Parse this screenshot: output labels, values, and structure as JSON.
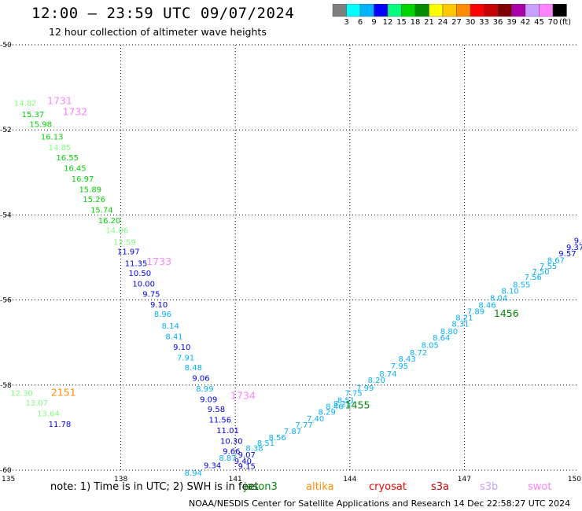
{
  "header": {
    "title": "12:00 — 23:59 UTC 09/07/2024",
    "subtitle": "12 hour collection of altimeter wave heights"
  },
  "colorbar": {
    "labels": [
      "3",
      "6",
      "9",
      "12",
      "15",
      "18",
      "21",
      "24",
      "27",
      "30",
      "33",
      "36",
      "39",
      "42",
      "45",
      "70"
    ],
    "unit": "(ft)",
    "colors": [
      "#7f7f7f",
      "#00ffff",
      "#00b2ff",
      "#0000ff",
      "#00ff7f",
      "#00d400",
      "#008c00",
      "#ffff00",
      "#ffc800",
      "#ff8c00",
      "#ff0000",
      "#c80000",
      "#7f0000",
      "#aa00aa",
      "#c8a0ff",
      "#ff82ff",
      "#000000"
    ]
  },
  "footer": {
    "note_prefix": "note:  1) Time is in UTC;  2) SWH is in feet",
    "satellites": [
      {
        "name": "jason3",
        "color": "#008c00"
      },
      {
        "name": "altika",
        "color": "#ff8c00"
      },
      {
        "name": "cryosat",
        "color": "#ff0000"
      },
      {
        "name": "s3a",
        "color": "#c80000"
      },
      {
        "name": "s3b",
        "color": "#c8a0ff"
      },
      {
        "name": "swot",
        "color": "#ff82ff"
      }
    ],
    "credit": "NOAA/NESDIS Center for Satellite Applications and Research    14 Dec 22:58:27 UTC 2024"
  },
  "chart_data": {
    "type": "scatter",
    "xlim": [
      135,
      150
    ],
    "ylim": [
      -60,
      -50
    ],
    "x_ticks": [
      "135",
      "138",
      "141",
      "144",
      "147",
      "150"
    ],
    "y_ticks": [
      "-50",
      "-52",
      "-54",
      "-56",
      "-58",
      "-60"
    ],
    "grid": true,
    "track_a": [
      [
        "14.82",
        135.5,
        -51.43,
        "#7fff7f"
      ],
      [
        "15.37",
        135.7,
        -51.7,
        "#00d400"
      ],
      [
        "15.98",
        135.9,
        -51.93,
        "#00d400"
      ],
      [
        "16.13",
        136.2,
        -52.23,
        "#00d400"
      ],
      [
        "14.85",
        136.4,
        -52.48,
        "#7fff7f"
      ],
      [
        "16.55",
        136.6,
        -52.72,
        "#00d400"
      ],
      [
        "16.45",
        136.8,
        -52.97,
        "#00d400"
      ],
      [
        "16.97",
        137.0,
        -53.22,
        "#00d400"
      ],
      [
        "15.89",
        137.2,
        -53.47,
        "#00d400"
      ],
      [
        "15.26",
        137.3,
        -53.7,
        "#00d400"
      ],
      [
        "15.74",
        137.5,
        -53.95,
        "#00d400"
      ],
      [
        "16.20",
        137.7,
        -54.2,
        "#00d400"
      ],
      [
        "14.06",
        137.9,
        -54.43,
        "#7fff7f"
      ],
      [
        "12.59",
        138.1,
        -54.7,
        "#7fff7f"
      ],
      [
        "11.97",
        138.2,
        -54.93,
        "#0000ff"
      ],
      [
        "11.35",
        138.4,
        -55.2,
        "#0000ff"
      ],
      [
        "10.50",
        138.5,
        -55.43,
        "#0000ff"
      ],
      [
        "10.00",
        138.6,
        -55.68,
        "#0000ff"
      ],
      [
        "9.75",
        138.8,
        -55.92,
        "#0000ff"
      ],
      [
        "9.10",
        139.0,
        -56.17,
        "#0000ff"
      ],
      [
        "8.96",
        139.1,
        -56.4,
        "#00b2ff"
      ],
      [
        "8.14",
        139.3,
        -56.67,
        "#00b2ff"
      ],
      [
        "8.41",
        139.4,
        -56.92,
        "#00b2ff"
      ],
      [
        "9.10",
        139.6,
        -57.17,
        "#0000ff"
      ],
      [
        "7.91",
        139.7,
        -57.42,
        "#00b2ff"
      ],
      [
        "8.48",
        139.9,
        -57.65,
        "#00b2ff"
      ],
      [
        "9.06",
        140.1,
        -57.9,
        "#0000ff"
      ],
      [
        "8.99",
        140.2,
        -58.15,
        "#00b2ff"
      ],
      [
        "9.09",
        140.3,
        -58.4,
        "#0000ff"
      ],
      [
        "9.58",
        140.5,
        -58.63,
        "#0000ff"
      ],
      [
        "11.56",
        140.6,
        -58.88,
        "#0000ff"
      ],
      [
        "11.01",
        140.8,
        -59.13,
        "#0000ff"
      ],
      [
        "10.30",
        140.9,
        -59.38,
        "#0000ff"
      ],
      [
        "9.66",
        140.9,
        -59.62,
        "#0000ff"
      ],
      [
        "9.40",
        141.2,
        -59.85,
        "#0000ff"
      ],
      [
        "8.94",
        139.9,
        -60.13,
        "#00b2ff"
      ],
      [
        "9.34",
        140.4,
        -59.95,
        "#0000ff"
      ],
      [
        "8.87",
        140.8,
        -59.78,
        "#00b2ff"
      ],
      [
        "9.07",
        141.3,
        -59.7,
        "#0000ff"
      ],
      [
        "9.15",
        141.3,
        -59.97,
        "#0000ff"
      ],
      [
        "8.38",
        141.5,
        -59.55,
        "#00b2ff"
      ]
    ],
    "track_b": [
      [
        "8.51",
        141.8,
        -59.43,
        "#00b2ff"
      ],
      [
        "8.56",
        142.1,
        -59.3,
        "#00b2ff"
      ],
      [
        "7.87",
        142.5,
        -59.15,
        "#00b2ff"
      ],
      [
        "7.77",
        142.8,
        -59.0,
        "#00b2ff"
      ],
      [
        "7.40",
        143.1,
        -58.85,
        "#00b2ff"
      ],
      [
        "8.29",
        143.4,
        -58.7,
        "#00b2ff"
      ],
      [
        "8.46",
        143.6,
        -58.57,
        "#00b2ff"
      ],
      [
        "8.25",
        143.8,
        -58.5,
        "#00b2ff"
      ],
      [
        "8.51",
        143.9,
        -58.42,
        "#00b2ff"
      ],
      [
        "7.75",
        144.1,
        -58.25,
        "#00b2ff"
      ],
      [
        "7.99",
        144.4,
        -58.13,
        "#00b2ff"
      ],
      [
        "8.20",
        144.7,
        -57.95,
        "#00b2ff"
      ],
      [
        "8.74",
        145.0,
        -57.8,
        "#00b2ff"
      ],
      [
        "7.95",
        145.3,
        -57.62,
        "#00b2ff"
      ],
      [
        "8.43",
        145.5,
        -57.45,
        "#00b2ff"
      ],
      [
        "8.72",
        145.8,
        -57.3,
        "#00b2ff"
      ],
      [
        "8.05",
        146.1,
        -57.13,
        "#00b2ff"
      ],
      [
        "8.64",
        146.4,
        -56.95,
        "#00b2ff"
      ],
      [
        "8.80",
        146.6,
        -56.8,
        "#00b2ff"
      ],
      [
        "8.31",
        146.9,
        -56.63,
        "#00b2ff"
      ],
      [
        "8.21",
        147.0,
        -56.48,
        "#00b2ff"
      ],
      [
        "7.89",
        147.3,
        -56.33,
        "#00b2ff"
      ],
      [
        "8.46",
        147.6,
        -56.18,
        "#00b2ff"
      ],
      [
        "8.04",
        147.9,
        -56.02,
        "#00b2ff"
      ],
      [
        "8.10",
        148.2,
        -55.85,
        "#00b2ff"
      ],
      [
        "8.55",
        148.5,
        -55.7,
        "#00b2ff"
      ],
      [
        "7.56",
        148.8,
        -55.53,
        "#00b2ff"
      ],
      [
        "7.50",
        149.0,
        -55.4,
        "#00b2ff"
      ],
      [
        "7.55",
        149.2,
        -55.27,
        "#00b2ff"
      ],
      [
        "8.67",
        149.4,
        -55.13,
        "#00b2ff"
      ],
      [
        "9.57",
        149.7,
        -54.97,
        "#0000ff"
      ],
      [
        "9.37",
        149.9,
        -54.82,
        "#0000ff"
      ],
      [
        "9.48",
        150.1,
        -54.67,
        "#0000ff"
      ],
      [
        "9.",
        150.3,
        -54.53,
        "#0000ff"
      ]
    ],
    "track_c": [
      [
        "12.30",
        135.4,
        -58.25,
        "#7fff7f"
      ],
      [
        "13.07",
        135.8,
        -58.48,
        "#7fff7f"
      ],
      [
        "13.64",
        136.1,
        -58.73,
        "#7fff7f"
      ],
      [
        "11.78",
        136.4,
        -58.98,
        "#0000ff"
      ]
    ],
    "times": [
      [
        "1731",
        136.4,
        -51.4,
        "#ff82ff"
      ],
      [
        "1732",
        136.8,
        -51.65,
        "#ff82ff"
      ],
      [
        "1733",
        139.0,
        -55.18,
        "#ff82ff"
      ],
      [
        "1734",
        141.2,
        -58.33,
        "#ff82ff"
      ],
      [
        "2151",
        136.5,
        -58.25,
        "#ff8c00"
      ],
      [
        "1455",
        144.2,
        -58.55,
        "#008c00"
      ],
      [
        "1456",
        148.1,
        -56.4,
        "#008c00"
      ]
    ]
  }
}
